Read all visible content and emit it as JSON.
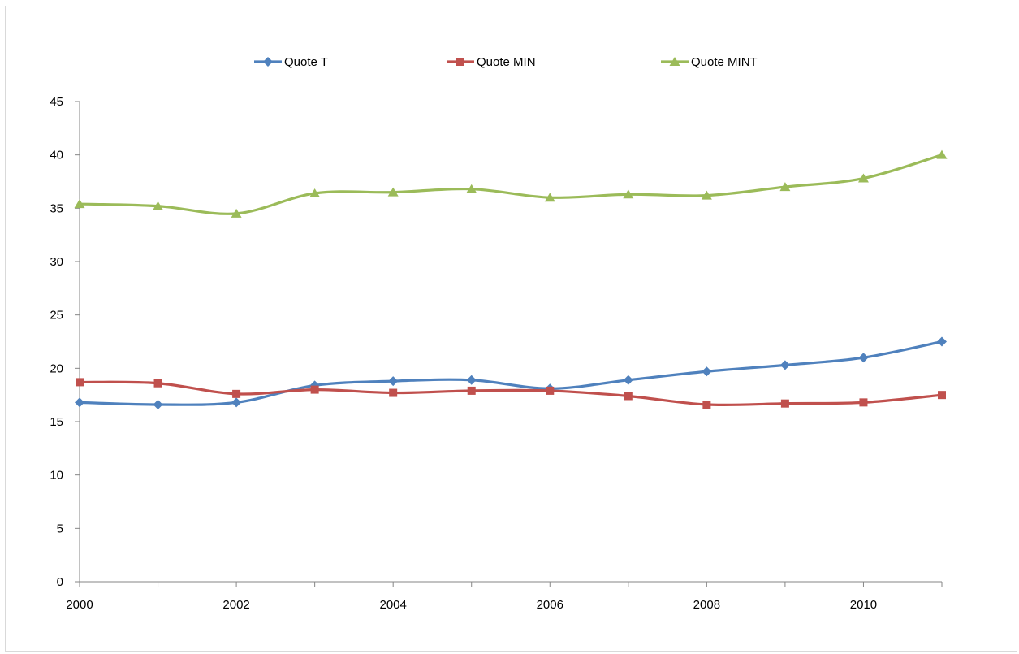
{
  "chart_data": {
    "type": "line",
    "smooth": true,
    "x": [
      2000,
      2001,
      2002,
      2003,
      2004,
      2005,
      2006,
      2007,
      2008,
      2009,
      2010,
      2011
    ],
    "xlim": [
      2000,
      2011
    ],
    "xticks": [
      2000,
      2002,
      2004,
      2006,
      2008,
      2010
    ],
    "ylim": [
      0,
      45
    ],
    "yticks": [
      0,
      5,
      10,
      15,
      20,
      25,
      30,
      35,
      40,
      45
    ],
    "grid": false,
    "legend": "top-center",
    "title": "",
    "xlabel": "",
    "ylabel": "",
    "series": [
      {
        "name": "Quote T",
        "color": "#4f81bd",
        "marker": "diamond",
        "values": [
          16.8,
          16.6,
          16.8,
          18.4,
          18.8,
          18.9,
          18.1,
          18.9,
          19.7,
          20.3,
          21.0,
          22.5
        ]
      },
      {
        "name": "Quote MIN",
        "color": "#c0504d",
        "marker": "square",
        "values": [
          18.7,
          18.6,
          17.6,
          18.0,
          17.7,
          17.9,
          17.9,
          17.4,
          16.6,
          16.7,
          16.8,
          17.5
        ]
      },
      {
        "name": "Quote MINT",
        "color": "#9bbb59",
        "marker": "triangle",
        "values": [
          35.4,
          35.2,
          34.5,
          36.4,
          36.5,
          36.8,
          36.0,
          36.3,
          36.2,
          37.0,
          37.8,
          40.0
        ]
      }
    ]
  }
}
